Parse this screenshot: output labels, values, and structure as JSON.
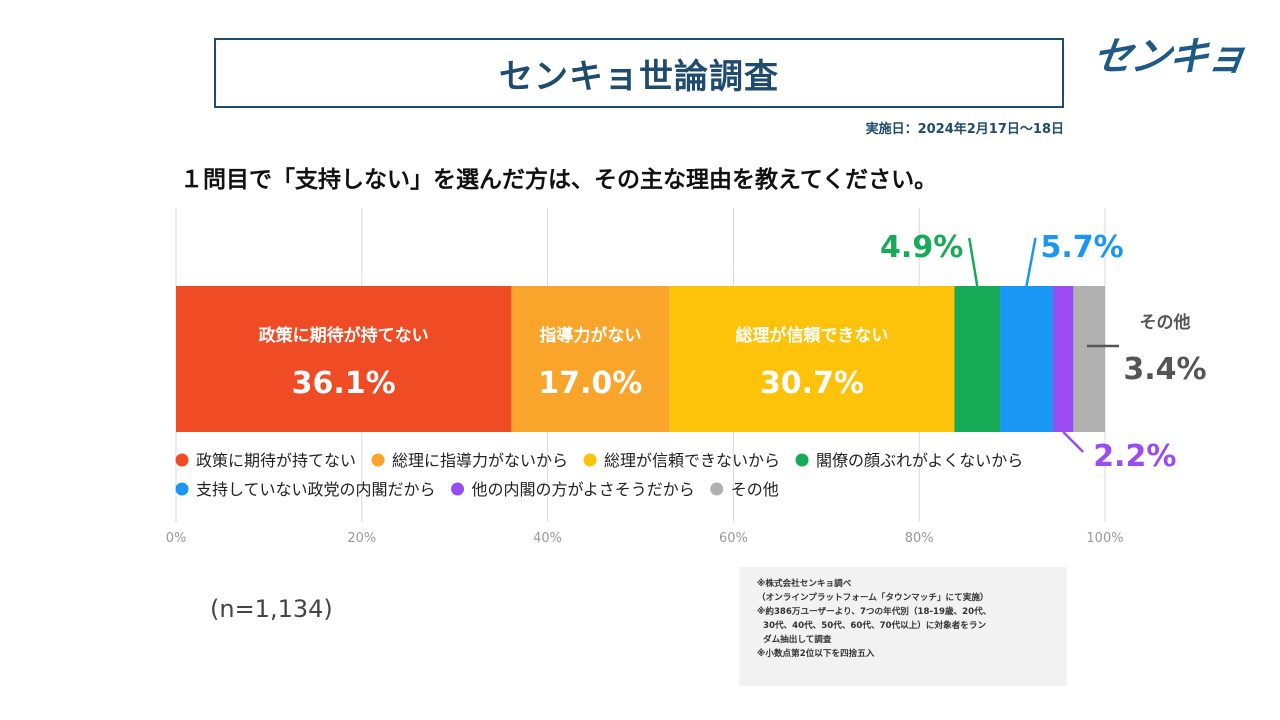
{
  "header": {
    "title": "センキョ世論調査",
    "logo_text": "センキョ",
    "date": "実施日：2024年2月17日～18日"
  },
  "question": "１問目で「支持しない」を選んだ方は、その主な理由を教えてください。",
  "sample_size": "(n=1,134)",
  "notes": [
    "※株式会社センキョ調べ",
    "（オンラインプラットフォーム「タウンマッチ」にて実施）",
    "※約386万ユーザーより、7つの年代別（18-19歳、20代、",
    "  30代、40代、50代、60代、70代以上）に対象者をラン",
    "  ダム抽出して調査",
    "※小数点第2位以下を四捨五入"
  ],
  "chart_data": {
    "type": "bar",
    "orientation": "horizontal-stacked",
    "xlim": [
      0,
      100
    ],
    "x_ticks": [
      "0%",
      "20%",
      "40%",
      "60%",
      "80%",
      "100%"
    ],
    "grid": true,
    "series": [
      {
        "name": "政策に期待が持てない",
        "bar_label": "政策に期待が持てない",
        "value": 36.1,
        "value_label": "36.1%",
        "color": "#ef4b24"
      },
      {
        "name": "総理に指導力がないから",
        "bar_label": "指導力がない",
        "value": 17.0,
        "value_label": "17.0%",
        "color": "#f9a42a"
      },
      {
        "name": "総理が信頼できないから",
        "bar_label": "総理が信頼できない",
        "value": 30.7,
        "value_label": "30.7%",
        "color": "#fdc20a"
      },
      {
        "name": "閣僚の顔ぶれがよくないから",
        "bar_label": "",
        "value": 4.9,
        "value_label": "4.9%",
        "color": "#17ab57"
      },
      {
        "name": "支持していない政党の内閣だから",
        "bar_label": "",
        "value": 5.7,
        "value_label": "5.7%",
        "color": "#1a96f5"
      },
      {
        "name": "他の内閣の方がよさそうだから",
        "bar_label": "",
        "value": 2.2,
        "value_label": "2.2%",
        "color": "#9a4cf2"
      },
      {
        "name": "その他",
        "bar_label": "",
        "value": 3.4,
        "value_label": "3.4%",
        "color": "#b1b1b1"
      }
    ],
    "other_label": "その他",
    "legend_placement": "below-bar"
  }
}
